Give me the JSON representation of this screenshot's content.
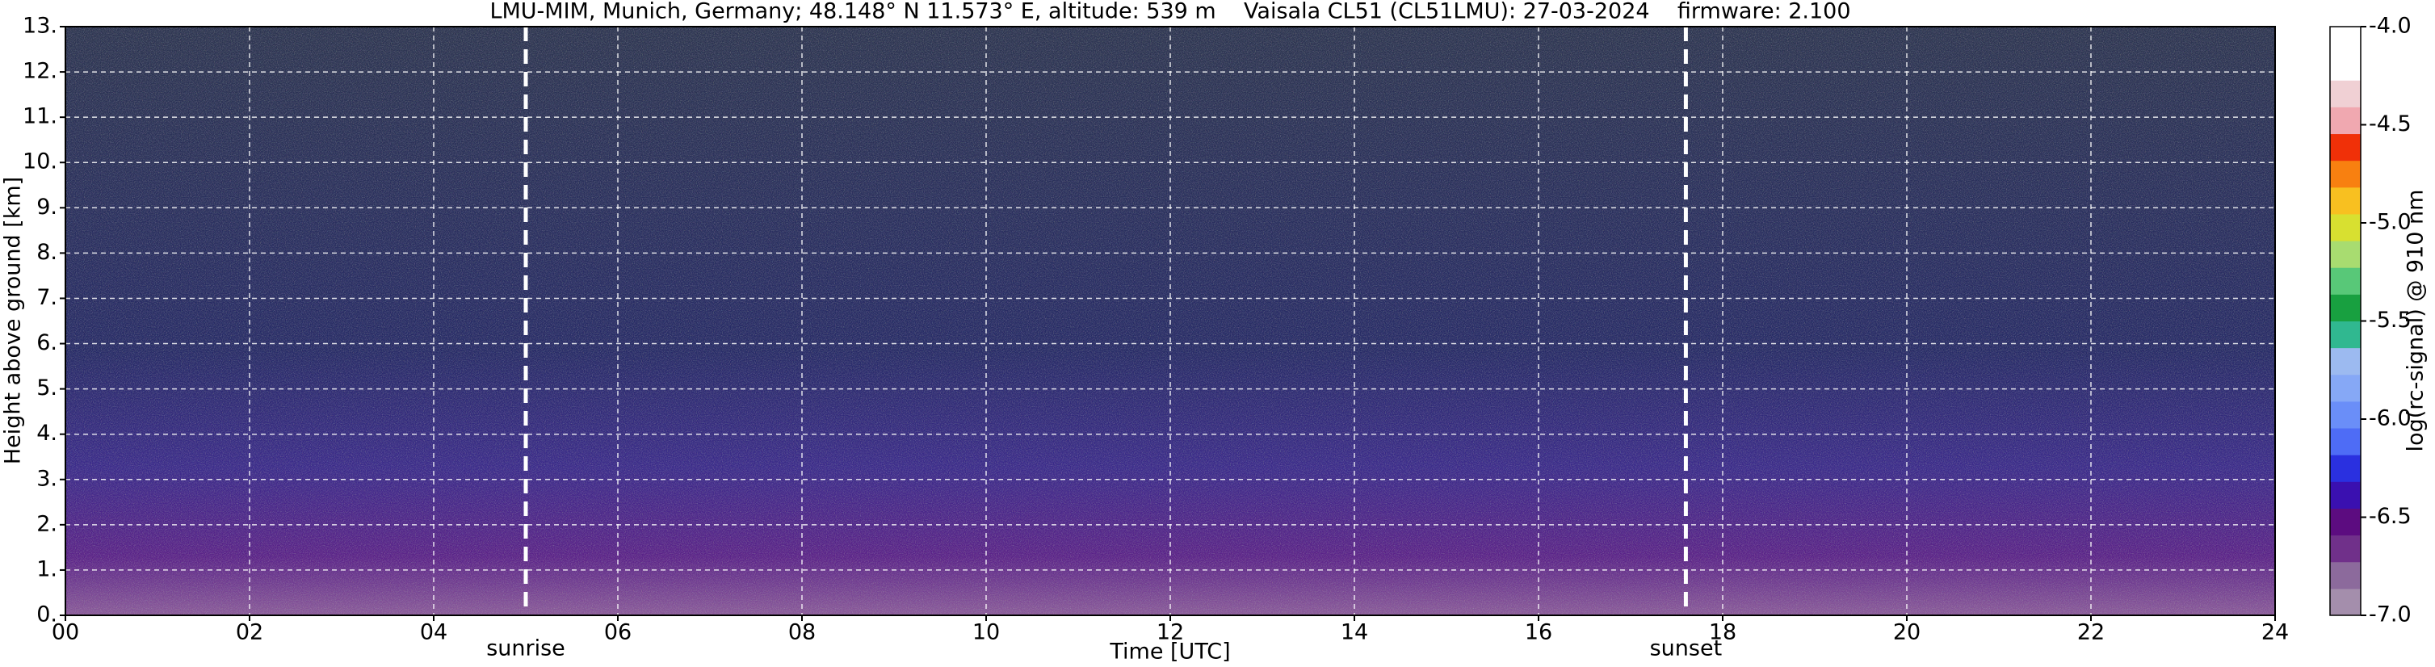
{
  "chart_data": {
    "type": "heatmap",
    "title": "LMU-MIM, Munich, Germany; 48.148° N 11.573° E, altitude: 539 m    Vaisala CL51 (CL51LMU): 27-03-2024    firmware: 2.100",
    "xlabel": "Time [UTC]",
    "ylabel": "Height above ground [km]",
    "xlim": [
      0,
      24
    ],
    "xticks": [
      {
        "value": 0,
        "label": "00"
      },
      {
        "value": 2,
        "label": "02"
      },
      {
        "value": 4,
        "label": "04"
      },
      {
        "value": 6,
        "label": "06"
      },
      {
        "value": 8,
        "label": "08"
      },
      10,
      12,
      14,
      16,
      18,
      20,
      22,
      24
    ],
    "ylim": [
      0,
      13
    ],
    "yticks": [
      {
        "value": 0,
        "label": "0."
      },
      {
        "value": 1,
        "label": "1."
      },
      {
        "value": 2,
        "label": "2."
      },
      {
        "value": 3,
        "label": "3."
      },
      {
        "value": 4,
        "label": "4."
      },
      {
        "value": 5,
        "label": "5."
      },
      {
        "value": 6,
        "label": "6."
      },
      {
        "value": 7,
        "label": "7."
      },
      {
        "value": 8,
        "label": "8."
      },
      {
        "value": 9,
        "label": "9."
      },
      {
        "value": 10,
        "label": "10."
      },
      {
        "value": 11,
        "label": "11."
      },
      {
        "value": 12,
        "label": "12."
      },
      {
        "value": 13,
        "label": "13."
      }
    ],
    "grid": true,
    "annotations": [
      {
        "text": "sunrise",
        "x": 5.0
      },
      {
        "text": "sunset",
        "x": 17.6
      }
    ],
    "colorbar": {
      "label": "log(rc-signal) @ 910 nm",
      "lim": [
        -7.0,
        -4.0
      ],
      "ticks": [
        {
          "value": -7.0,
          "label": "-7.0"
        },
        -6.5,
        {
          "value": -6.0,
          "label": "-6.0"
        },
        -5.5,
        {
          "value": -5.0,
          "label": "-5.0"
        },
        -4.5,
        {
          "value": -4.0,
          "label": "-4.0"
        }
      ],
      "colors": [
        "#a48eac",
        "#8c6a9c",
        "#70308a",
        "#5c0c80",
        "#3a10b0",
        "#2a30e0",
        "#4e6cf6",
        "#6a8ef8",
        "#86a8f6",
        "#9cbaf0",
        "#30b890",
        "#18a040",
        "#58c878",
        "#a8dc70",
        "#d8e030",
        "#f8c020",
        "#f88010",
        "#f03008",
        "#f0a8b0",
        "#f0d0d4",
        "#ffffff",
        "#ffffff"
      ]
    }
  }
}
